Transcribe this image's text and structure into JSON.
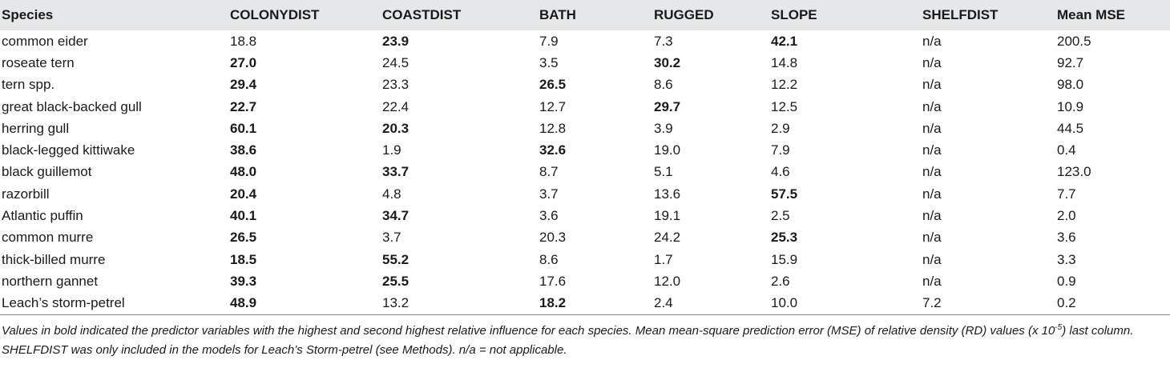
{
  "table": {
    "headers": [
      "Species",
      "COLONYDIST",
      "COASTDIST",
      "BATH",
      "RUGGED",
      "SLOPE",
      "SHELFDIST",
      "Mean MSE"
    ],
    "rows": [
      {
        "cells": [
          "common eider",
          "18.8",
          "23.9",
          "7.9",
          "7.3",
          "42.1",
          "n/a",
          "200.5"
        ],
        "bold": [
          2,
          5
        ]
      },
      {
        "cells": [
          "roseate tern",
          "27.0",
          "24.5",
          "3.5",
          "30.2",
          "14.8",
          "n/a",
          "92.7"
        ],
        "bold": [
          1,
          4
        ]
      },
      {
        "cells": [
          "tern spp.",
          "29.4",
          "23.3",
          "26.5",
          "8.6",
          "12.2",
          "n/a",
          "98.0"
        ],
        "bold": [
          1,
          3
        ]
      },
      {
        "cells": [
          "great black-backed gull",
          "22.7",
          "22.4",
          "12.7",
          "29.7",
          "12.5",
          "n/a",
          "10.9"
        ],
        "bold": [
          1,
          4
        ]
      },
      {
        "cells": [
          "herring gull",
          "60.1",
          "20.3",
          "12.8",
          "3.9",
          "2.9",
          "n/a",
          "44.5"
        ],
        "bold": [
          1,
          2
        ]
      },
      {
        "cells": [
          "black-legged kittiwake",
          "38.6",
          "1.9",
          "32.6",
          "19.0",
          "7.9",
          "n/a",
          "0.4"
        ],
        "bold": [
          1,
          3
        ]
      },
      {
        "cells": [
          "black guillemot",
          "48.0",
          "33.7",
          "8.7",
          "5.1",
          "4.6",
          "n/a",
          "123.0"
        ],
        "bold": [
          1,
          2
        ]
      },
      {
        "cells": [
          "razorbill",
          "20.4",
          "4.8",
          "3.7",
          "13.6",
          "57.5",
          "n/a",
          "7.7"
        ],
        "bold": [
          1,
          5
        ]
      },
      {
        "cells": [
          "Atlantic puffin",
          "40.1",
          "34.7",
          "3.6",
          "19.1",
          "2.5",
          "n/a",
          "2.0"
        ],
        "bold": [
          1,
          2
        ]
      },
      {
        "cells": [
          "common murre",
          "26.5",
          "3.7",
          "20.3",
          "24.2",
          "25.3",
          "n/a",
          "3.6"
        ],
        "bold": [
          1,
          5
        ]
      },
      {
        "cells": [
          "thick-billed murre",
          "18.5",
          "55.2",
          "8.6",
          "1.7",
          "15.9",
          "n/a",
          "3.3"
        ],
        "bold": [
          1,
          2
        ]
      },
      {
        "cells": [
          "northern gannet",
          "39.3",
          "25.5",
          "17.6",
          "12.0",
          "2.6",
          "n/a",
          "0.9"
        ],
        "bold": [
          1,
          2
        ]
      },
      {
        "cells": [
          "Leach’s storm-petrel",
          "48.9",
          "13.2",
          "18.2",
          "2.4",
          "10.0",
          "7.2",
          "0.2"
        ],
        "bold": [
          1,
          3
        ]
      }
    ]
  },
  "footnote": {
    "before_sup": "Values in bold indicated the predictor variables with the highest and second highest relative influence for each species. Mean mean-square prediction error (MSE) of relative density (RD) values (x 10",
    "sup": "-5",
    "after_sup": ") last column. SHELFDIST was only included in the models for Leach’s Storm-petrel (see Methods). n/a = not applicable."
  }
}
